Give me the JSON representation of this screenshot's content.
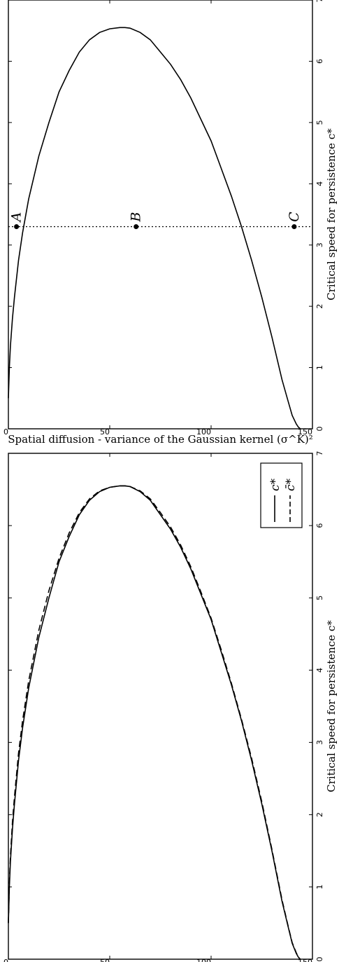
{
  "chart_data": [
    {
      "type": "line",
      "xlabel": "Spatial diffusion - variance of the Gaussian kernel (σ^K)²",
      "ylabel": "Critical speed for persistence c*",
      "xlim": [
        0,
        150
      ],
      "ylim": [
        0,
        7
      ],
      "xticks": [
        "0",
        "50",
        "100",
        "150"
      ],
      "yticks": [
        "0",
        "1",
        "2",
        "3",
        "4",
        "5",
        "6",
        "7"
      ],
      "grid": false,
      "legend_placement": "top-right",
      "series": [
        {
          "name": "c*",
          "style": "solid",
          "x": [
            0,
            0.5,
            1,
            2,
            3,
            5,
            7,
            10,
            15,
            20,
            25,
            30,
            35,
            40,
            45,
            50,
            55,
            57.5,
            60,
            65,
            70,
            75,
            80,
            85,
            90,
            95,
            100,
            105,
            110,
            115,
            120,
            125,
            130,
            135,
            138,
            140,
            142,
            143,
            144
          ],
          "y": [
            0.5,
            1.0,
            1.35,
            1.8,
            2.15,
            2.75,
            3.2,
            3.75,
            4.45,
            5.0,
            5.5,
            5.85,
            6.15,
            6.35,
            6.47,
            6.53,
            6.55,
            6.55,
            6.54,
            6.47,
            6.35,
            6.15,
            5.95,
            5.7,
            5.4,
            5.05,
            4.7,
            4.25,
            3.8,
            3.3,
            2.75,
            2.15,
            1.5,
            0.8,
            0.45,
            0.22,
            0.08,
            0.03,
            0.0
          ]
        },
        {
          "name": "c̄*",
          "style": "dashed",
          "x": [
            0,
            0.5,
            1,
            2,
            3,
            5,
            7,
            10,
            15,
            20,
            25,
            30,
            35,
            40,
            45,
            50,
            55,
            57.5,
            60,
            65,
            70,
            75,
            80,
            85,
            90,
            95,
            100,
            105,
            110,
            115,
            120,
            125,
            130,
            135,
            138,
            140,
            142,
            143,
            144
          ],
          "y": [
            0.5,
            1.05,
            1.42,
            1.9,
            2.25,
            2.85,
            3.3,
            3.85,
            4.55,
            5.1,
            5.55,
            5.9,
            6.18,
            6.37,
            6.48,
            6.53,
            6.55,
            6.55,
            6.54,
            6.48,
            6.37,
            6.18,
            5.98,
            5.73,
            5.43,
            5.08,
            4.72,
            4.28,
            3.82,
            3.32,
            2.78,
            2.18,
            1.52,
            0.82,
            0.46,
            0.23,
            0.09,
            0.03,
            0.0
          ]
        }
      ]
    },
    {
      "type": "line",
      "xlabel": "Spatial diffusion - variance of the Gaussian kernel (σ^K)²",
      "ylabel": "Critical speed for persistence c*",
      "xlim": [
        0,
        150
      ],
      "ylim": [
        0,
        7
      ],
      "xticks": [
        "0",
        "50",
        "100",
        "150"
      ],
      "yticks": [
        "0",
        "1",
        "2",
        "3",
        "4",
        "5",
        "6",
        "7"
      ],
      "grid": false,
      "series": [
        {
          "style": "solid",
          "x": [
            0,
            0.5,
            1,
            2,
            3,
            5,
            7,
            10,
            15,
            20,
            25,
            30,
            35,
            40,
            45,
            50,
            55,
            57.5,
            60,
            65,
            70,
            75,
            80,
            85,
            90,
            95,
            100,
            105,
            110,
            115,
            120,
            125,
            130,
            135,
            138,
            140,
            142,
            143,
            144
          ],
          "y": [
            0.5,
            1.0,
            1.35,
            1.8,
            2.15,
            2.75,
            3.2,
            3.75,
            4.45,
            5.0,
            5.5,
            5.85,
            6.15,
            6.35,
            6.47,
            6.53,
            6.55,
            6.55,
            6.54,
            6.47,
            6.35,
            6.15,
            5.95,
            5.7,
            5.4,
            5.05,
            4.7,
            4.25,
            3.8,
            3.3,
            2.75,
            2.15,
            1.5,
            0.8,
            0.45,
            0.22,
            0.08,
            0.03,
            0.0
          ]
        }
      ],
      "reference_line": {
        "style": "dotted",
        "y": 3.3
      },
      "points": [
        {
          "label": "A",
          "x": 4,
          "y": 3.3
        },
        {
          "label": "B",
          "x": 63,
          "y": 3.3
        },
        {
          "label": "C",
          "x": 141,
          "y": 3.3
        }
      ]
    }
  ]
}
